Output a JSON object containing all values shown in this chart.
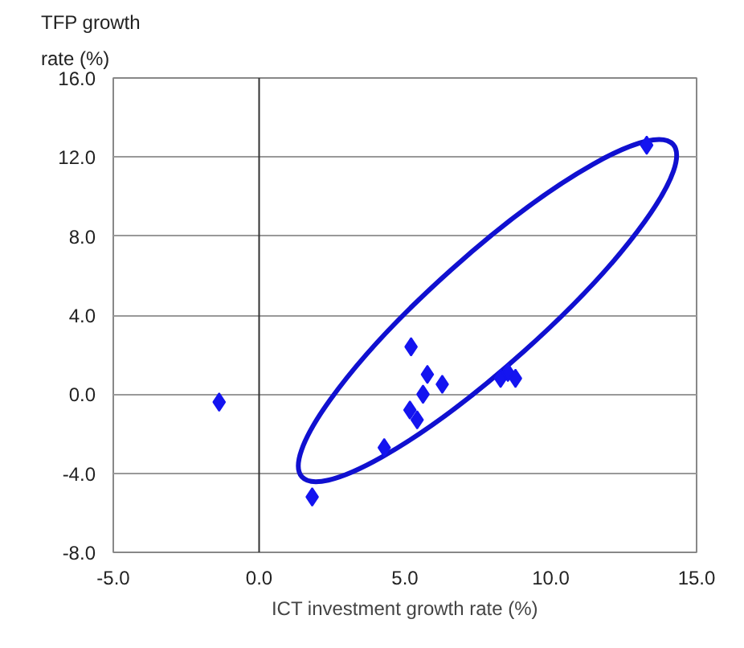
{
  "chart_data": {
    "type": "scatter",
    "xlabel": "ICT investment growth rate (%)",
    "ylabel": "TFP growth\nrate (%)",
    "series": [
      {
        "color": "#1414f0",
        "x": [
          -1.37,
          1.82,
          4.29,
          5.21,
          5.17,
          5.42,
          5.62,
          5.77,
          6.28,
          8.28,
          8.53,
          8.79,
          13.29
        ],
        "values": [
          -0.4,
          -5.2,
          -2.7,
          2.4,
          -0.8,
          -1.3,
          0.0,
          1.0,
          0.5,
          0.8,
          1.1,
          0.8,
          12.6
        ]
      }
    ],
    "marker": "diamond",
    "xlim": [
      -5,
      15
    ],
    "ylim": [
      -8,
      16
    ],
    "xticks": [
      {
        "value": -5,
        "label": "-5.0"
      },
      {
        "value": 0,
        "label": "0.0"
      },
      {
        "value": 5,
        "label": "5.0"
      },
      {
        "value": 10,
        "label": "10.0"
      },
      {
        "value": 15,
        "label": "15.0"
      }
    ],
    "yticks": [
      {
        "value": -8,
        "label": "-8.0"
      },
      {
        "value": -4,
        "label": "-4.0"
      },
      {
        "value": 0,
        "label": "0.0"
      },
      {
        "value": 4,
        "label": "4.0"
      },
      {
        "value": 8,
        "label": "8.0"
      },
      {
        "value": 12,
        "label": "12.0"
      },
      {
        "value": 16,
        "label": "16.0"
      }
    ],
    "grid": "y",
    "ref_lines": [
      {
        "axis": "x",
        "value": 0,
        "color": "#333333"
      }
    ]
  }
}
